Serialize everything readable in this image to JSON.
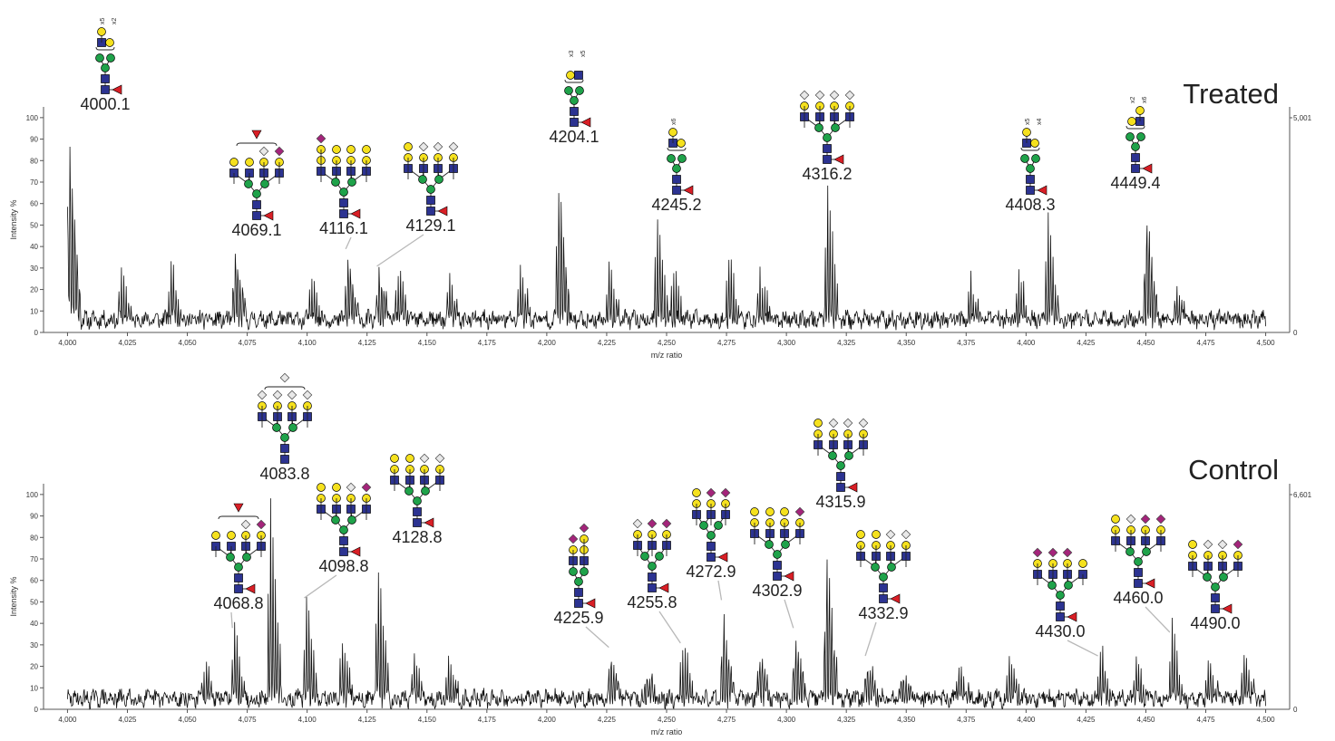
{
  "colors": {
    "trace": "#111111",
    "axis": "#555555",
    "leader": "#b8b8b8",
    "gal": "#f5e11e",
    "glcnac": "#2c3391",
    "man": "#1fa24a",
    "fuc": "#d91f26",
    "neu5ac": "#a4247b",
    "neu5gc": "#e8e8e8"
  },
  "chart_data": [
    {
      "type": "line",
      "panel_label": "Treated",
      "xlabel": "m/z ratio",
      "ylabel": "Intensity %",
      "xlim": [
        3990,
        4510
      ],
      "ylim": [
        0,
        105
      ],
      "x_ticks": [
        4000,
        4025,
        4050,
        4075,
        4100,
        4125,
        4150,
        4175,
        4200,
        4225,
        4250,
        4275,
        4300,
        4325,
        4350,
        4375,
        4400,
        4425,
        4450,
        4475,
        4500
      ],
      "x_tick_labels": [
        "4,000",
        "4,025",
        "4,050",
        "4,075",
        "4,100",
        "4,125",
        "4,150",
        "4,175",
        "4,200",
        "4,225",
        "4,250",
        "4,275",
        "4,300",
        "4,325",
        "4,350",
        "4,375",
        "4,400",
        "4,425",
        "4,450",
        "4,475",
        "4,500"
      ],
      "y_ticks": [
        0,
        10,
        20,
        30,
        40,
        50,
        60,
        70,
        80,
        90,
        100
      ],
      "y_tick_labels": [
        "0",
        "10",
        "20",
        "30",
        "40",
        "50",
        "60",
        "70",
        "80",
        "90",
        "100"
      ],
      "right_axis_labels": [
        "5,001",
        "0"
      ],
      "grid": false,
      "baseline": 6,
      "seed": 11,
      "clusters": [
        {
          "mz": 4000.1,
          "height": 100
        },
        {
          "mz": 4069.1,
          "height": 41
        },
        {
          "mz": 4116.1,
          "height": 38
        },
        {
          "mz": 4129.1,
          "height": 30
        },
        {
          "mz": 4204.1,
          "height": 86
        },
        {
          "mz": 4245.2,
          "height": 53
        },
        {
          "mz": 4316.2,
          "height": 68
        },
        {
          "mz": 4408.3,
          "height": 53
        },
        {
          "mz": 4449.4,
          "height": 65
        },
        {
          "mz": 4021.5,
          "height": 22
        },
        {
          "mz": 4042.3,
          "height": 30
        },
        {
          "mz": 4101.0,
          "height": 21
        },
        {
          "mz": 4137.0,
          "height": 24
        },
        {
          "mz": 4158.5,
          "height": 19
        },
        {
          "mz": 4188.0,
          "height": 25
        },
        {
          "mz": 4225.0,
          "height": 25
        },
        {
          "mz": 4252.0,
          "height": 23
        },
        {
          "mz": 4275.0,
          "height": 31
        },
        {
          "mz": 4288.0,
          "height": 21
        },
        {
          "mz": 4376.0,
          "height": 18
        },
        {
          "mz": 4396.0,
          "height": 23
        },
        {
          "mz": 4462.0,
          "height": 19
        }
      ],
      "annotations": [
        {
          "label": "4000.1",
          "mz": 4000.1,
          "y_peak": 100,
          "leader": false,
          "glycan": "A"
        },
        {
          "label": "4069.1",
          "mz": 4069.1,
          "y_peak": 41,
          "leader": false,
          "glycan": "B"
        },
        {
          "label": "4116.1",
          "mz": 4116.1,
          "y_peak": 38,
          "leader": true,
          "glycan": "C"
        },
        {
          "label": "4129.1",
          "mz": 4129.1,
          "y_peak": 30,
          "leader": true,
          "glycan": "D"
        },
        {
          "label": "4204.1",
          "mz": 4204.1,
          "y_peak": 86,
          "leader": false,
          "glycan": "E"
        },
        {
          "label": "4245.2",
          "mz": 4245.2,
          "y_peak": 53,
          "leader": false,
          "glycan": "F"
        },
        {
          "label": "4316.2",
          "mz": 4316.2,
          "y_peak": 68,
          "leader": false,
          "glycan": "G"
        },
        {
          "label": "4408.3",
          "mz": 4408.3,
          "y_peak": 53,
          "leader": false,
          "glycan": "H"
        },
        {
          "label": "4449.4",
          "mz": 4449.4,
          "y_peak": 65,
          "leader": false,
          "glycan": "I"
        }
      ],
      "multipliers": [
        {
          "glycan": "A",
          "labels": [
            "x5",
            "x2"
          ]
        },
        {
          "glycan": "E",
          "labels": [
            "x3",
            "x5"
          ]
        },
        {
          "glycan": "F",
          "labels": [
            "x6"
          ]
        },
        {
          "glycan": "H",
          "labels": [
            "x5",
            "x4"
          ]
        },
        {
          "glycan": "I",
          "labels": [
            "x2",
            "x6"
          ]
        }
      ]
    },
    {
      "type": "line",
      "panel_label": "Control",
      "xlabel": "m/z ratio",
      "ylabel": "Intensity %",
      "xlim": [
        3990,
        4510
      ],
      "ylim": [
        0,
        105
      ],
      "x_ticks": [
        4000,
        4025,
        4050,
        4075,
        4100,
        4125,
        4150,
        4175,
        4200,
        4225,
        4250,
        4275,
        4300,
        4325,
        4350,
        4375,
        4400,
        4425,
        4450,
        4475,
        4500
      ],
      "x_tick_labels": [
        "4,000",
        "4,025",
        "4,050",
        "4,075",
        "4,100",
        "4,125",
        "4,150",
        "4,175",
        "4,200",
        "4,225",
        "4,250",
        "4,275",
        "4,300",
        "4,325",
        "4,350",
        "4,375",
        "4,400",
        "4,425",
        "4,450",
        "4,475",
        "4,500"
      ],
      "y_ticks": [
        0,
        10,
        20,
        30,
        40,
        50,
        60,
        70,
        80,
        90,
        100
      ],
      "y_tick_labels": [
        "0",
        "10",
        "20",
        "30",
        "40",
        "50",
        "60",
        "70",
        "80",
        "90",
        "100"
      ],
      "right_axis_labels": [
        "6,601",
        "0"
      ],
      "grid": false,
      "baseline": 5,
      "seed": 29,
      "clusters": [
        {
          "mz": 4068.8,
          "height": 37
        },
        {
          "mz": 4083.8,
          "height": 100
        },
        {
          "mz": 4098.8,
          "height": 51
        },
        {
          "mz": 4128.8,
          "height": 66
        },
        {
          "mz": 4225.9,
          "height": 28
        },
        {
          "mz": 4255.8,
          "height": 30
        },
        {
          "mz": 4272.9,
          "height": 50
        },
        {
          "mz": 4302.9,
          "height": 37
        },
        {
          "mz": 4315.9,
          "height": 90
        },
        {
          "mz": 4332.9,
          "height": 24
        },
        {
          "mz": 4430.0,
          "height": 24
        },
        {
          "mz": 4460.0,
          "height": 35
        },
        {
          "mz": 4490.0,
          "height": 22
        },
        {
          "mz": 4056.0,
          "height": 17
        },
        {
          "mz": 4113.8,
          "height": 30
        },
        {
          "mz": 4143.8,
          "height": 22
        },
        {
          "mz": 4158.0,
          "height": 17
        },
        {
          "mz": 4240.9,
          "height": 18
        },
        {
          "mz": 4287.9,
          "height": 28
        },
        {
          "mz": 4347.9,
          "height": 18
        },
        {
          "mz": 4371.0,
          "height": 17
        },
        {
          "mz": 4392.0,
          "height": 20
        },
        {
          "mz": 4445.0,
          "height": 17
        },
        {
          "mz": 4475.0,
          "height": 20
        }
      ],
      "annotations": [
        {
          "label": "4068.8",
          "mz": 4068.8,
          "y_peak": 37,
          "leader": true,
          "glycan": "J"
        },
        {
          "label": "4083.8",
          "mz": 4083.8,
          "y_peak": 100,
          "leader": false,
          "glycan": "K"
        },
        {
          "label": "4098.8",
          "mz": 4098.8,
          "y_peak": 51,
          "leader": true,
          "glycan": "L"
        },
        {
          "label": "4128.8",
          "mz": 4128.8,
          "y_peak": 66,
          "leader": false,
          "glycan": "M"
        },
        {
          "label": "4225.9",
          "mz": 4225.9,
          "y_peak": 28,
          "leader": true,
          "glycan": "N"
        },
        {
          "label": "4255.8",
          "mz": 4255.8,
          "y_peak": 30,
          "leader": true,
          "glycan": "O"
        },
        {
          "label": "4272.9",
          "mz": 4272.9,
          "y_peak": 50,
          "leader": true,
          "glycan": "P"
        },
        {
          "label": "4302.9",
          "mz": 4302.9,
          "y_peak": 37,
          "leader": true,
          "glycan": "Q"
        },
        {
          "label": "4315.9",
          "mz": 4315.9,
          "y_peak": 90,
          "leader": false,
          "glycan": "R"
        },
        {
          "label": "4332.9",
          "mz": 4332.9,
          "y_peak": 24,
          "leader": true,
          "glycan": "S"
        },
        {
          "label": "4430.0",
          "mz": 4430.0,
          "y_peak": 24,
          "leader": true,
          "glycan": "T"
        },
        {
          "label": "4460.0",
          "mz": 4460.0,
          "y_peak": 35,
          "leader": true,
          "glycan": "U"
        },
        {
          "label": "4490.0",
          "mz": 4490.0,
          "y_peak": 22,
          "leader": false,
          "glycan": "V"
        }
      ],
      "multipliers": []
    }
  ],
  "glycans": {
    "A": {
      "type": "bracket",
      "antenna_units": [
        {
          "mult": "x5",
          "stack": [
            "gal",
            "glcnac"
          ]
        },
        {
          "mult": "x2",
          "stack": [
            "gal"
          ]
        }
      ],
      "fucose": true
    },
    "B": {
      "type": "tetra",
      "antennae": [
        [
          "glcnac",
          "gal"
        ],
        [
          "glcnac",
          "gal"
        ],
        [
          "glcnac",
          "gal",
          "neu5gc"
        ],
        [
          "glcnac",
          "gal",
          "neu5ac"
        ]
      ],
      "floating_fucose": true,
      "fucose": true
    },
    "C": {
      "type": "tetra",
      "antennae": [
        [
          "glcnac",
          "gal",
          "gal",
          "neu5ac"
        ],
        [
          "glcnac",
          "gal",
          "gal"
        ],
        [
          "glcnac",
          "gal",
          "gal"
        ],
        [
          "glcnac",
          "gal",
          "gal"
        ]
      ],
      "fucose": true
    },
    "D": {
      "type": "tetra",
      "antennae": [
        [
          "glcnac",
          "gal",
          "gal"
        ],
        [
          "glcnac",
          "gal",
          "neu5gc"
        ],
        [
          "glcnac",
          "gal",
          "neu5gc"
        ],
        [
          "glcnac",
          "gal",
          "neu5gc"
        ]
      ],
      "fucose": true
    },
    "E": {
      "type": "bracket",
      "antenna_units": [
        {
          "mult": "x3",
          "stack": [
            "gal"
          ]
        },
        {
          "mult": "x5",
          "stack": [
            "glcnac"
          ]
        }
      ],
      "fucose": true
    },
    "F": {
      "type": "bracket",
      "antenna_units": [
        {
          "mult": "x6",
          "stack": [
            "gal",
            "glcnac"
          ]
        },
        {
          "mult": "",
          "stack": [
            "gal"
          ]
        }
      ],
      "fucose": true
    },
    "G": {
      "type": "tetra",
      "antennae": [
        [
          "glcnac",
          "gal",
          "neu5gc"
        ],
        [
          "glcnac",
          "gal",
          "neu5gc"
        ],
        [
          "glcnac",
          "gal",
          "neu5gc"
        ],
        [
          "glcnac",
          "gal",
          "neu5gc"
        ]
      ],
      "fucose": true
    },
    "H": {
      "type": "bracket",
      "antenna_units": [
        {
          "mult": "x5",
          "stack": [
            "gal",
            "glcnac"
          ]
        },
        {
          "mult": "x4",
          "stack": [
            "gal"
          ]
        }
      ],
      "fucose": true
    },
    "I": {
      "type": "bracket",
      "antenna_units": [
        {
          "mult": "x2",
          "stack": [
            "gal"
          ]
        },
        {
          "mult": "x6",
          "stack": [
            "gal",
            "glcnac"
          ]
        }
      ],
      "fucose": true
    },
    "J": {
      "type": "tetra",
      "antennae": [
        [
          "glcnac",
          "gal"
        ],
        [
          "glcnac",
          "gal"
        ],
        [
          "glcnac",
          "gal",
          "neu5gc"
        ],
        [
          "glcnac",
          "gal",
          "neu5ac"
        ]
      ],
      "floating_fucose": true,
      "fucose": true
    },
    "K": {
      "type": "tetra",
      "antennae": [
        [
          "glcnac",
          "gal",
          "neu5gc"
        ],
        [
          "glcnac",
          "gal",
          "neu5gc"
        ],
        [
          "glcnac",
          "gal",
          "neu5gc"
        ],
        [
          "glcnac",
          "gal",
          "neu5gc"
        ]
      ],
      "bracket_extra": "neu5gc",
      "fucose": false
    },
    "L": {
      "type": "tetra",
      "antennae": [
        [
          "glcnac",
          "gal",
          "gal"
        ],
        [
          "glcnac",
          "gal",
          "gal"
        ],
        [
          "glcnac",
          "gal",
          "neu5gc"
        ],
        [
          "glcnac",
          "gal",
          "neu5ac"
        ]
      ],
      "fucose": true
    },
    "M": {
      "type": "tetra",
      "antennae": [
        [
          "glcnac",
          "gal",
          "gal"
        ],
        [
          "glcnac",
          "gal",
          "gal"
        ],
        [
          "glcnac",
          "gal",
          "neu5gc"
        ],
        [
          "glcnac",
          "gal",
          "neu5gc"
        ]
      ],
      "fucose": true
    },
    "N": {
      "type": "bi",
      "antennae": [
        [
          "glcnac",
          "gal",
          "neu5ac"
        ],
        [
          "glcnac",
          "gal",
          "gal",
          "neu5ac"
        ]
      ],
      "fucose": true
    },
    "O": {
      "type": "tri",
      "antennae": [
        [
          "glcnac",
          "gal",
          "neu5gc"
        ],
        [
          "glcnac",
          "gal",
          "neu5ac"
        ],
        [
          "glcnac",
          "gal",
          "neu5ac"
        ]
      ],
      "fucose": true
    },
    "P": {
      "type": "tri",
      "antennae": [
        [
          "glcnac",
          "gal",
          "gal"
        ],
        [
          "glcnac",
          "gal",
          "neu5ac"
        ],
        [
          "glcnac",
          "gal",
          "neu5ac"
        ]
      ],
      "fucose": true
    },
    "Q": {
      "type": "tetra",
      "antennae": [
        [
          "glcnac",
          "gal",
          "gal"
        ],
        [
          "glcnac",
          "gal",
          "gal"
        ],
        [
          "glcnac",
          "gal",
          "gal"
        ],
        [
          "glcnac",
          "gal",
          "neu5ac"
        ]
      ],
      "fucose": true
    },
    "R": {
      "type": "tetra",
      "antennae": [
        [
          "glcnac",
          "gal",
          "gal"
        ],
        [
          "glcnac",
          "gal",
          "neu5gc"
        ],
        [
          "glcnac",
          "gal",
          "neu5gc"
        ],
        [
          "glcnac",
          "gal",
          "neu5gc"
        ]
      ],
      "fucose": true
    },
    "S": {
      "type": "tetra",
      "antennae": [
        [
          "glcnac",
          "gal",
          "gal"
        ],
        [
          "glcnac",
          "gal",
          "gal"
        ],
        [
          "glcnac",
          "gal",
          "neu5gc"
        ],
        [
          "glcnac",
          "gal",
          "neu5gc"
        ]
      ],
      "fucose": true
    },
    "T": {
      "type": "tetra",
      "antennae": [
        [
          "glcnac",
          "gal",
          "neu5ac"
        ],
        [
          "glcnac",
          "gal",
          "neu5ac"
        ],
        [
          "glcnac",
          "gal",
          "neu5ac"
        ],
        [
          "glcnac",
          "gal"
        ]
      ],
      "fucose": true
    },
    "U": {
      "type": "tetra",
      "antennae": [
        [
          "glcnac",
          "gal",
          "gal"
        ],
        [
          "glcnac",
          "gal",
          "neu5gc"
        ],
        [
          "glcnac",
          "gal",
          "neu5ac"
        ],
        [
          "glcnac",
          "gal",
          "neu5ac"
        ]
      ],
      "fucose": true
    },
    "V": {
      "type": "tetra",
      "antennae": [
        [
          "glcnac",
          "gal",
          "gal"
        ],
        [
          "glcnac",
          "gal",
          "neu5gc"
        ],
        [
          "glcnac",
          "gal",
          "neu5gc"
        ],
        [
          "glcnac",
          "gal",
          "neu5ac"
        ]
      ],
      "fucose": true
    }
  }
}
